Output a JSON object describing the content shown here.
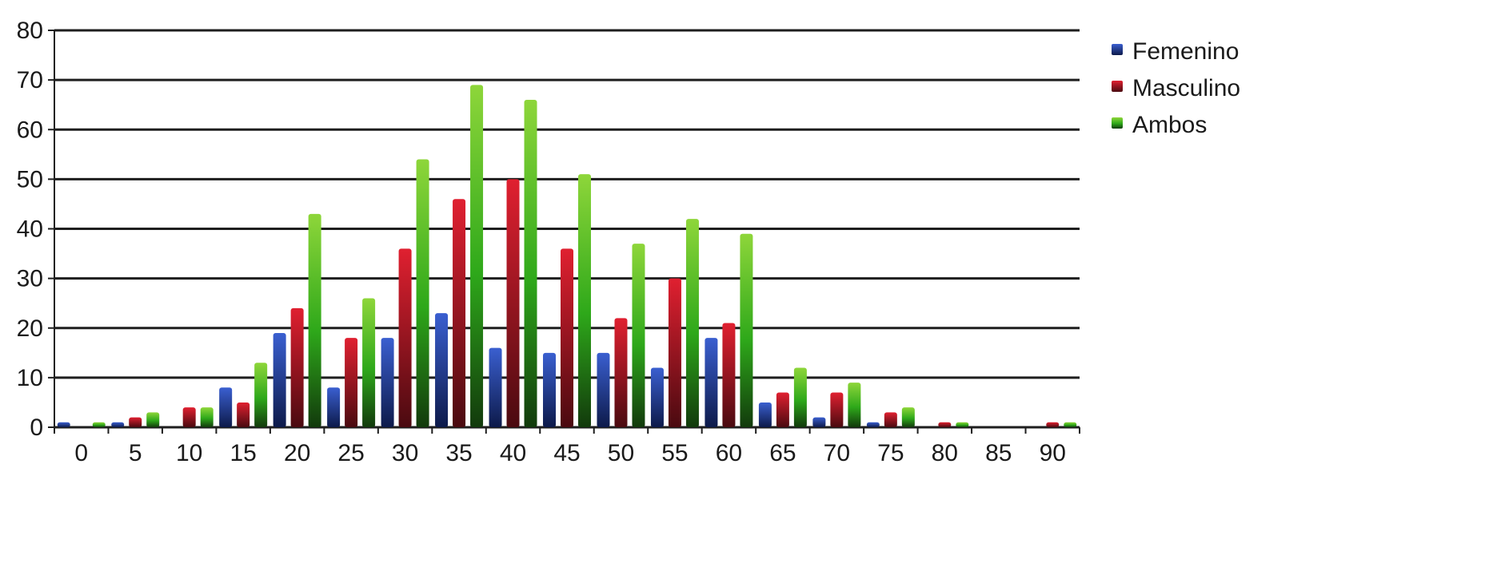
{
  "chart_data": {
    "type": "bar",
    "title": "",
    "xlabel": "",
    "ylabel": "",
    "ylim": [
      0,
      80
    ],
    "yticks": [
      0,
      10,
      20,
      30,
      40,
      50,
      60,
      70,
      80
    ],
    "grid": true,
    "legend_position": "right-top",
    "categories": [
      "0",
      "5",
      "10",
      "15",
      "20",
      "25",
      "30",
      "35",
      "40",
      "45",
      "50",
      "55",
      "60",
      "65",
      "70",
      "75",
      "80",
      "85",
      "90"
    ],
    "series": [
      {
        "name": "Femenino",
        "color": "#1f3f9e",
        "values": [
          1,
          1,
          0,
          8,
          19,
          8,
          18,
          23,
          16,
          15,
          15,
          12,
          18,
          5,
          2,
          1,
          0,
          0,
          0
        ]
      },
      {
        "name": "Masculino",
        "color": "#c0101e",
        "values": [
          0,
          2,
          4,
          5,
          24,
          18,
          36,
          46,
          50,
          36,
          22,
          30,
          21,
          7,
          7,
          3,
          1,
          0,
          1
        ]
      },
      {
        "name": "Ambos",
        "color": "#4fb81c",
        "values": [
          1,
          3,
          4,
          13,
          43,
          26,
          54,
          69,
          66,
          51,
          37,
          42,
          39,
          12,
          9,
          4,
          1,
          0,
          1
        ]
      }
    ]
  }
}
